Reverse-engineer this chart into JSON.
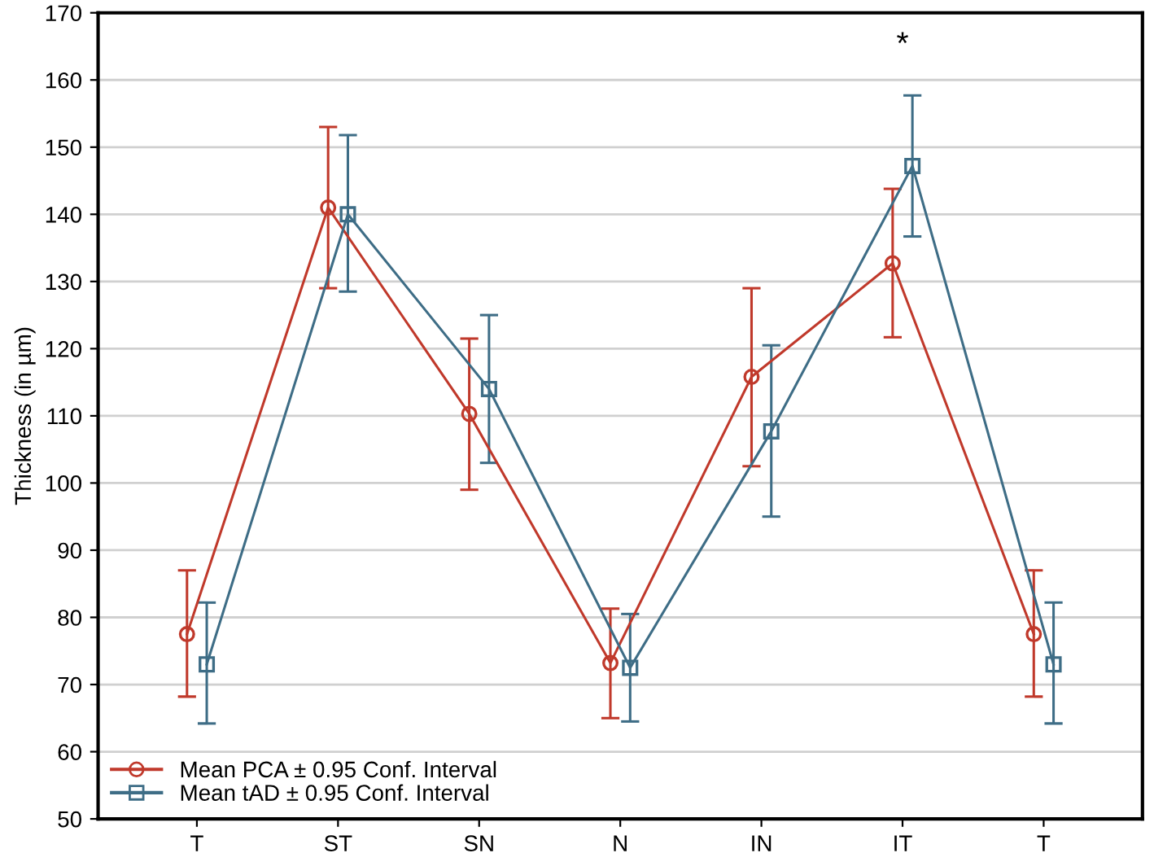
{
  "chart_data": {
    "type": "line",
    "ylabel": "Thickness (in µm)",
    "categories": [
      "T",
      "ST",
      "SN",
      "N",
      "IN",
      "IT",
      "T"
    ],
    "series": [
      {
        "name": "Mean PCA ± 0.95 Conf. Interval",
        "color": "#c0392b",
        "marker": "circle",
        "values": [
          77.5,
          141,
          110.3,
          73.2,
          115.8,
          132.7,
          77.5
        ],
        "errors": [
          [
            68.2,
            87
          ],
          [
            129,
            153
          ],
          [
            99,
            121.5
          ],
          [
            65,
            81.3
          ],
          [
            102.5,
            129
          ],
          [
            121.7,
            143.8
          ],
          [
            68.2,
            87
          ]
        ]
      },
      {
        "name": "Mean tAD ± 0.95 Conf. Interval",
        "color": "#3e6d86",
        "marker": "square",
        "values": [
          73,
          140,
          114,
          72.5,
          107.7,
          147.2,
          73
        ],
        "errors": [
          [
            64.2,
            82.2
          ],
          [
            128.5,
            151.8
          ],
          [
            103,
            125
          ],
          [
            64.5,
            80.5
          ],
          [
            95,
            120.5
          ],
          [
            136.7,
            157.7
          ],
          [
            64.2,
            82.2
          ]
        ]
      }
    ],
    "ylim": [
      50,
      170
    ],
    "yticks": [
      50,
      60,
      70,
      80,
      90,
      100,
      110,
      120,
      130,
      140,
      150,
      160,
      170
    ],
    "annotations": [
      "*"
    ],
    "grid": "y",
    "legend": "bottom left",
    "line_style": "solid"
  }
}
